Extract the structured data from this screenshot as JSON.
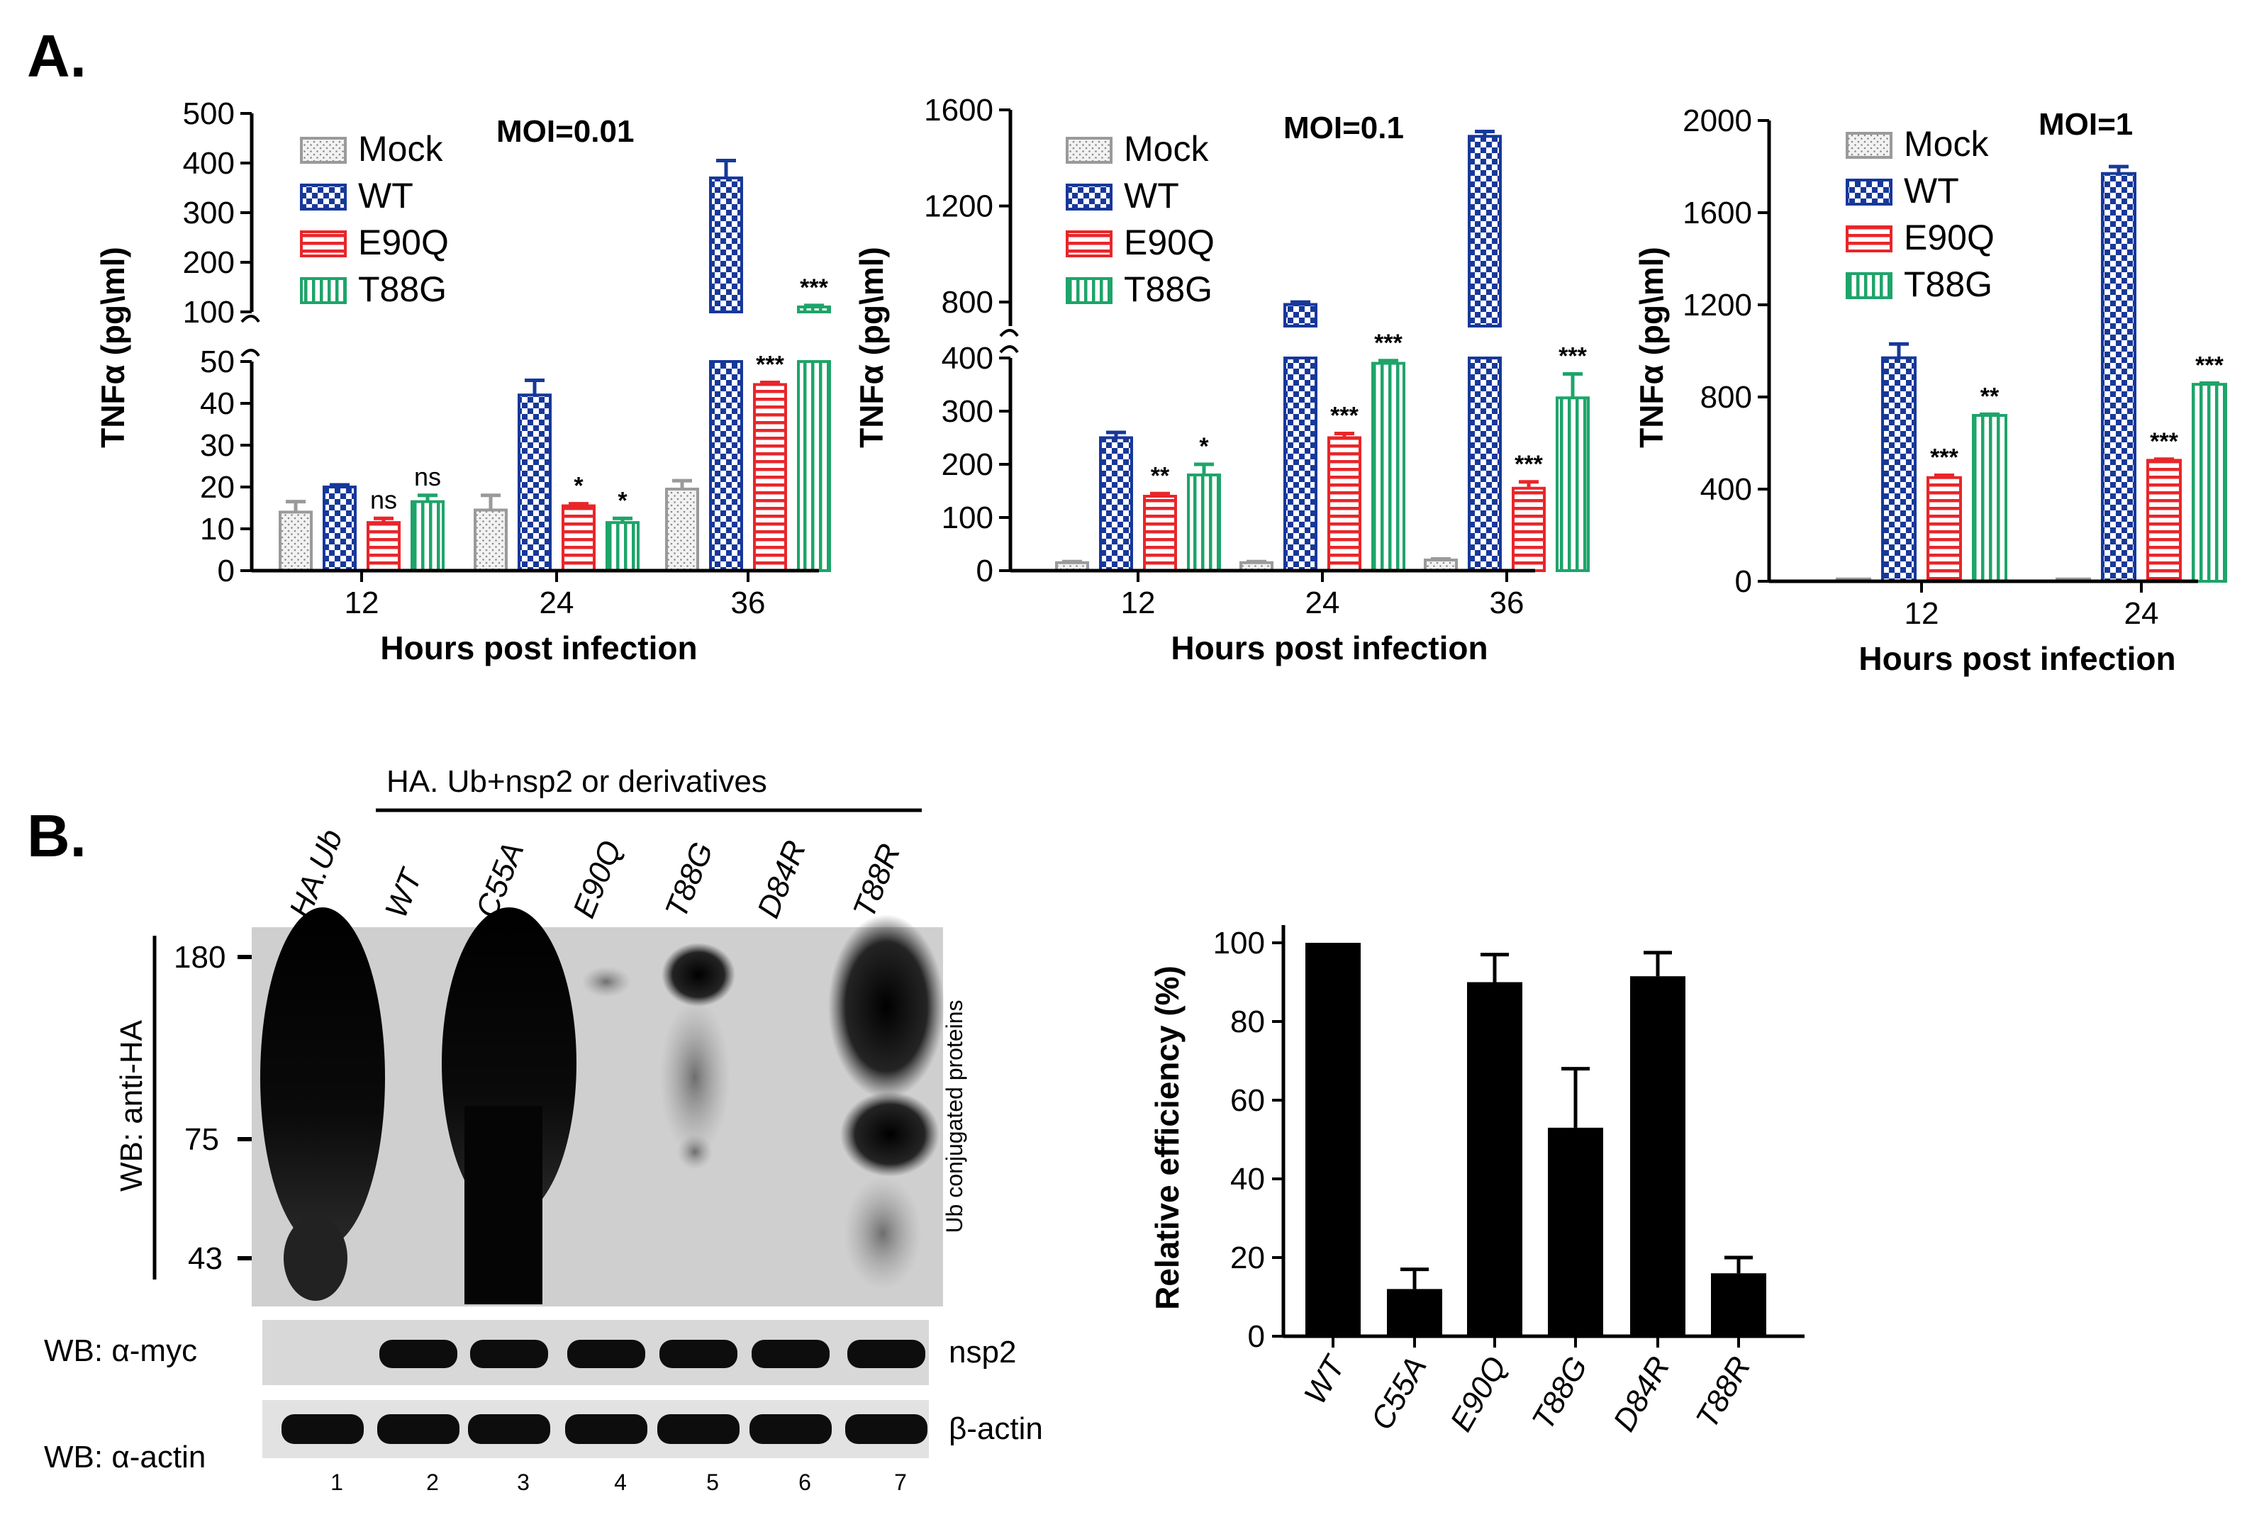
{
  "panel_a": {
    "label": "A."
  },
  "panel_b": {
    "label": "B."
  },
  "chart_data": [
    {
      "type": "bar",
      "title": "MOI=0.01",
      "xlabel": "Hours post infection",
      "ylabel": "TNFα (pg\\ml)",
      "categories": [
        "12",
        "24",
        "36"
      ],
      "series": [
        {
          "name": "Mock",
          "values": [
            14,
            14.5,
            19.5
          ],
          "errors": [
            2.5,
            3.5,
            2
          ]
        },
        {
          "name": "WT",
          "values": [
            20,
            42,
            370
          ],
          "errors": [
            0.5,
            3.5,
            35
          ]
        },
        {
          "name": "E90Q",
          "values": [
            11.5,
            15.5,
            44.5
          ],
          "errors": [
            1,
            0.5,
            0.5
          ]
        },
        {
          "name": "T88G",
          "values": [
            16.5,
            11.5,
            110
          ],
          "errors": [
            1.5,
            1,
            3
          ]
        }
      ],
      "significance": [
        [
          "",
          "",
          "ns",
          "ns"
        ],
        [
          "",
          "",
          "*",
          "*"
        ],
        [
          "",
          "",
          "***",
          "***"
        ]
      ],
      "lower_ticks": [
        "0",
        "10",
        "20",
        "30",
        "40",
        "50"
      ],
      "upper_ticks": [
        "100",
        "200",
        "300",
        "400",
        "500"
      ],
      "axis_break": {
        "lower": [
          0,
          50
        ],
        "upper": [
          100,
          500
        ]
      }
    },
    {
      "type": "bar",
      "title": "MOI=0.1",
      "xlabel": "Hours post infection",
      "ylabel": "TNFα (pg\\ml)",
      "categories": [
        "12",
        "24",
        "36"
      ],
      "series": [
        {
          "name": "Mock",
          "values": [
            15,
            15,
            20
          ],
          "errors": [
            2,
            2,
            2
          ]
        },
        {
          "name": "WT",
          "values": [
            250,
            790,
            1490
          ],
          "errors": [
            10,
            10,
            20
          ]
        },
        {
          "name": "E90Q",
          "values": [
            140,
            250,
            155
          ],
          "errors": [
            5,
            8,
            12
          ]
        },
        {
          "name": "T88G",
          "values": [
            180,
            390,
            325
          ],
          "errors": [
            20,
            5,
            45
          ]
        }
      ],
      "significance": [
        [
          "",
          "",
          "**",
          "*"
        ],
        [
          "",
          "",
          "***",
          "***"
        ],
        [
          "",
          "",
          "***",
          "***"
        ]
      ],
      "lower_ticks": [
        "0",
        "100",
        "200",
        "300",
        "400"
      ],
      "upper_ticks": [
        "800",
        "1200",
        "1600"
      ],
      "axis_break": {
        "lower": [
          0,
          400
        ],
        "upper": [
          700,
          1600
        ]
      }
    },
    {
      "type": "bar",
      "title": "MOI=1",
      "xlabel": "Hours post infection",
      "ylabel": "TNFα (pg\\ml)",
      "categories": [
        "12",
        "24"
      ],
      "series": [
        {
          "name": "Mock",
          "values": [
            10,
            10
          ],
          "errors": [
            0,
            0
          ]
        },
        {
          "name": "WT",
          "values": [
            970,
            1770
          ],
          "errors": [
            60,
            30
          ]
        },
        {
          "name": "E90Q",
          "values": [
            450,
            525
          ],
          "errors": [
            10,
            5
          ]
        },
        {
          "name": "T88G",
          "values": [
            720,
            855
          ],
          "errors": [
            5,
            5
          ]
        }
      ],
      "significance": [
        [
          "",
          "",
          "***",
          "**"
        ],
        [
          "",
          "",
          "***",
          "***"
        ]
      ],
      "ticks": [
        "0",
        "400",
        "800",
        "1200",
        "1600",
        "2000"
      ],
      "ylim": [
        0,
        2000
      ]
    },
    {
      "type": "bar",
      "title": "",
      "xlabel": "",
      "ylabel": "Relative efficiency  (%)",
      "categories": [
        "WT",
        "C55A",
        "E90Q",
        "T88G",
        "D84R",
        "T88R"
      ],
      "values": [
        100,
        12,
        90,
        53,
        91.5,
        16
      ],
      "errors": [
        0,
        5,
        7,
        15,
        6,
        4
      ],
      "ticks": [
        "0",
        "20",
        "40",
        "60",
        "80",
        "100"
      ],
      "ylim": [
        0,
        100
      ]
    }
  ],
  "legend": {
    "entries": [
      "Mock",
      "WT",
      "E90Q",
      "T88G"
    ],
    "colors": {
      "Mock": "#9a9a9a",
      "WT": "#17389a",
      "E90Q": "#e8262a",
      "T88G": "#1ea46a"
    }
  },
  "blot": {
    "group_label": "HA. Ub+nsp2 or derivatives",
    "lanes": [
      "HA.Ub",
      "WT",
      "C55A",
      "E90Q",
      "T88G",
      "D84R",
      "T88R"
    ],
    "lane_numbers": [
      "1",
      "2",
      "3",
      "4",
      "5",
      "6",
      "7"
    ],
    "markers": [
      "180",
      "75",
      "43"
    ],
    "wb_anti_ha": "WB: anti-HA",
    "wb_myc": "WB: α-myc",
    "wb_actin": "WB: α-actin",
    "ub_label": "Ub conjugated proteins",
    "nsp2_label": "nsp2",
    "actin_label": "β-actin"
  }
}
